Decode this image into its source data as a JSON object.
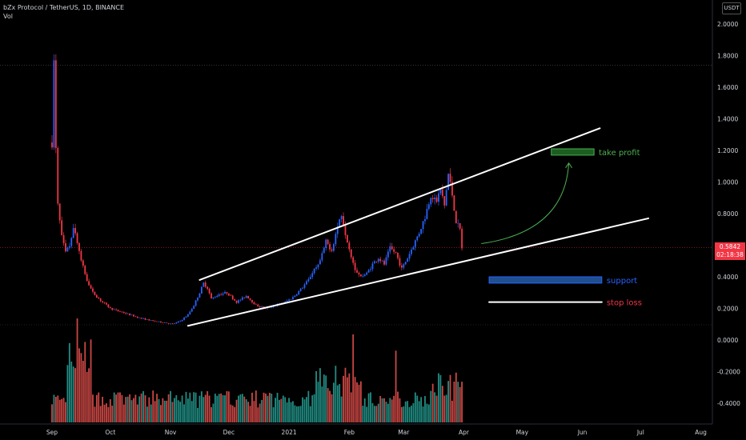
{
  "header": {
    "symbol_line": "bZx Protocol / TetherUS, 1D, BINANCE",
    "volume_label": "Vol",
    "currency": "USDT"
  },
  "last_price": {
    "value": "0.5842",
    "countdown": "02:18:38"
  },
  "colors": {
    "up": "#2962ff",
    "down": "#f23645",
    "vol_up": "#26a69a",
    "vol_down": "#ef5350",
    "support_box": "#1e4f8f",
    "take_profit_box": "#1b5e20",
    "take_profit_text": "#4caf50",
    "support_text": "#2962ff",
    "stop_text": "#f23645"
  },
  "chart_data": {
    "type": "candlestick",
    "price_axis": {
      "ticks": [
        "2.0000",
        "1.8000",
        "1.6000",
        "1.4000",
        "1.2000",
        "1.0000",
        "0.8000",
        "0.6000",
        "0.4000",
        "0.2000",
        "0.0000",
        "-0.2000",
        "-0.4000"
      ],
      "ylim": [
        -0.43,
        2.1
      ]
    },
    "time_axis": {
      "ticks": [
        "Sep",
        "Oct",
        "Nov",
        "Dec",
        "2021",
        "Feb",
        "Mar",
        "Apr",
        "May",
        "Jun",
        "Jul",
        "Aug"
      ],
      "tick_days": [
        0,
        30,
        61,
        91,
        122,
        153,
        181,
        212,
        242,
        273,
        303,
        334
      ]
    },
    "price_path": [
      [
        0,
        1.25
      ],
      [
        1,
        1.75
      ],
      [
        2,
        1.2
      ],
      [
        3,
        0.85
      ],
      [
        5,
        0.65
      ],
      [
        7,
        0.55
      ],
      [
        9,
        0.6
      ],
      [
        11,
        0.72
      ],
      [
        13,
        0.62
      ],
      [
        15,
        0.5
      ],
      [
        18,
        0.38
      ],
      [
        21,
        0.3
      ],
      [
        25,
        0.25
      ],
      [
        30,
        0.2
      ],
      [
        35,
        0.18
      ],
      [
        40,
        0.16
      ],
      [
        45,
        0.14
      ],
      [
        52,
        0.12
      ],
      [
        58,
        0.11
      ],
      [
        62,
        0.1
      ],
      [
        66,
        0.12
      ],
      [
        70,
        0.16
      ],
      [
        73,
        0.22
      ],
      [
        76,
        0.3
      ],
      [
        78,
        0.36
      ],
      [
        80,
        0.33
      ],
      [
        82,
        0.26
      ],
      [
        86,
        0.29
      ],
      [
        90,
        0.3
      ],
      [
        95,
        0.24
      ],
      [
        100,
        0.28
      ],
      [
        105,
        0.22
      ],
      [
        110,
        0.2
      ],
      [
        115,
        0.22
      ],
      [
        120,
        0.24
      ],
      [
        124,
        0.27
      ],
      [
        128,
        0.32
      ],
      [
        132,
        0.38
      ],
      [
        135,
        0.45
      ],
      [
        138,
        0.5
      ],
      [
        141,
        0.62
      ],
      [
        144,
        0.57
      ],
      [
        147,
        0.72
      ],
      [
        149,
        0.8
      ],
      [
        151,
        0.68
      ],
      [
        153,
        0.58
      ],
      [
        156,
        0.45
      ],
      [
        159,
        0.4
      ],
      [
        162,
        0.42
      ],
      [
        165,
        0.48
      ],
      [
        168,
        0.52
      ],
      [
        171,
        0.48
      ],
      [
        174,
        0.58
      ],
      [
        177,
        0.55
      ],
      [
        180,
        0.45
      ],
      [
        183,
        0.52
      ],
      [
        186,
        0.6
      ],
      [
        189,
        0.68
      ],
      [
        192,
        0.78
      ],
      [
        195,
        0.92
      ],
      [
        198,
        0.88
      ],
      [
        200,
        0.95
      ],
      [
        202,
        0.85
      ],
      [
        204,
        1.05
      ],
      [
        206,
        0.92
      ],
      [
        208,
        0.75
      ],
      [
        210,
        0.7
      ],
      [
        211,
        0.58
      ]
    ],
    "drawings": {
      "channel_upper": [
        [
          76,
          0.38
        ],
        [
          282,
          1.34
        ]
      ],
      "channel_lower": [
        [
          70,
          0.09
        ],
        [
          307,
          0.77
        ]
      ],
      "stop_loss_line": [
        [
          225,
          0.24
        ],
        [
          283,
          0.24
        ]
      ],
      "support_box": {
        "x": [
          225,
          283
        ],
        "y": [
          0.36,
          0.4
        ]
      },
      "take_profit_box": {
        "x": [
          257,
          279
        ],
        "y": [
          1.17,
          1.21
        ]
      },
      "projection_arrow": [
        [
          221,
          0.61
        ],
        [
          266,
          1.12
        ]
      ],
      "reference_line_price": 1.74,
      "last_price_line": 0.5842
    },
    "annotations": {
      "take_profit": "take profit",
      "support": "support",
      "stop_loss": "stop loss"
    }
  }
}
